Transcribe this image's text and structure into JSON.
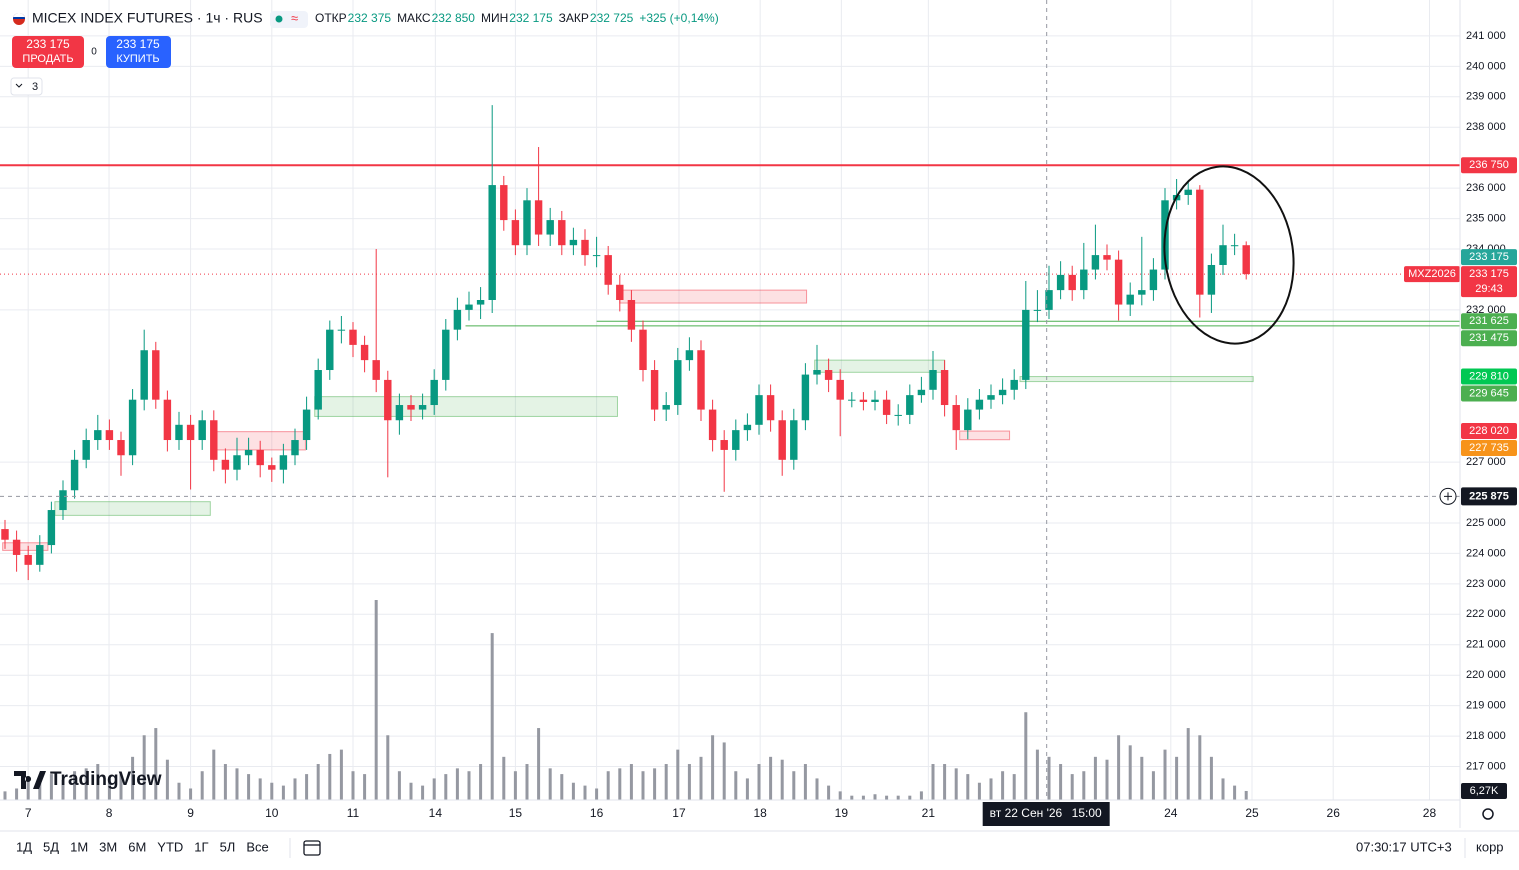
{
  "header": {
    "symbol": "MICEX INDEX FUTURES · 1ч · RUS",
    "ohlc": [
      {
        "label": "ОТКР",
        "value": "232 375"
      },
      {
        "label": "МАКС",
        "value": "232 850"
      },
      {
        "label": "МИН",
        "value": "232 175"
      },
      {
        "label": "ЗАКР",
        "value": "232 725"
      }
    ],
    "change": "+325 (+0,14%)"
  },
  "trade": {
    "sell_price": "233 175",
    "sell_label": "ПРОДАТЬ",
    "spread": "0",
    "buy_price": "233 175",
    "buy_label": "КУПИТЬ",
    "indicators": "3"
  },
  "logo": "TradingView",
  "chart_data": {
    "type": "candlestick",
    "up_color": "#089981",
    "down_color": "#f23645",
    "volume_color": "#9598a1",
    "open": [
      224800,
      224450,
      223950,
      223625,
      224275,
      225425,
      226075,
      227075,
      227725,
      228050,
      227725,
      227225,
      229050,
      230675,
      229050,
      227725,
      228225,
      227725,
      228375,
      227075,
      226750,
      227225,
      227400,
      226900,
      226750,
      227225,
      227725,
      228725,
      230025,
      231350,
      231350,
      230850,
      230350,
      229700,
      228375,
      228875,
      228725,
      228875,
      229700,
      231350,
      232000,
      232175,
      232325,
      236100,
      234950,
      234125,
      235600,
      234475,
      234950,
      234125,
      234300,
      233800,
      233800,
      232825,
      232325,
      231350,
      230025,
      228725,
      228875,
      230350,
      230675,
      228725,
      227725,
      227400,
      228050,
      228225,
      229200,
      228375,
      227075,
      228375,
      229875,
      230025,
      229700,
      229050,
      229050,
      228975,
      229050,
      228550,
      228550,
      229200,
      229375,
      230025,
      228875,
      228050,
      228725,
      229050,
      229200,
      229375,
      229700,
      232000,
      232000,
      232650,
      233150,
      232650,
      233325,
      233800,
      233650,
      232175,
      232500,
      232650,
      233325,
      235600,
      235775,
      235950,
      232500,
      233475,
      234125,
      234125
    ],
    "high": [
      225100,
      224750,
      224250,
      224600,
      225700,
      226400,
      227400,
      228100,
      228550,
      228400,
      228000,
      229400,
      231350,
      230950,
      229350,
      228650,
      228550,
      228700,
      228700,
      227450,
      227800,
      227800,
      227700,
      227150,
      227600,
      228100,
      229150,
      230400,
      231650,
      231800,
      231600,
      231150,
      234000,
      230000,
      229250,
      229200,
      229250,
      230050,
      231700,
      232400,
      232600,
      232750,
      238725,
      236400,
      235300,
      236000,
      237350,
      235350,
      235250,
      234700,
      234650,
      234400,
      234100,
      233150,
      232650,
      231650,
      230350,
      229300,
      230750,
      231100,
      231000,
      229050,
      228050,
      228400,
      228600,
      229550,
      229550,
      228700,
      228750,
      230250,
      230850,
      230400,
      230050,
      229300,
      229300,
      229350,
      229350,
      228900,
      229550,
      229800,
      230650,
      230350,
      229200,
      229100,
      229400,
      229550,
      229750,
      230050,
      232950,
      232650,
      233450,
      233600,
      233450,
      234200,
      234800,
      234150,
      233950,
      232900,
      234400,
      233700,
      236000,
      236300,
      236250,
      236100,
      233850,
      234800,
      234500,
      234250
    ],
    "low": [
      224150,
      223400,
      223125,
      223400,
      224000,
      225100,
      225800,
      226800,
      227400,
      227400,
      226550,
      226900,
      228700,
      228750,
      227350,
      227400,
      226100,
      227400,
      226700,
      226300,
      226400,
      226900,
      226500,
      226350,
      226300,
      226900,
      227400,
      228400,
      229700,
      230900,
      230450,
      229950,
      229300,
      226500,
      227900,
      228350,
      228400,
      228550,
      229350,
      231000,
      231650,
      231700,
      231900,
      234600,
      233800,
      233800,
      234100,
      234100,
      233800,
      233800,
      233450,
      233400,
      232500,
      231950,
      230950,
      229650,
      228350,
      228350,
      228550,
      230000,
      228350,
      227350,
      226025,
      227050,
      227700,
      227900,
      228000,
      226550,
      226750,
      228050,
      229550,
      229300,
      227850,
      228800,
      228700,
      228700,
      228250,
      228200,
      228250,
      228950,
      229050,
      228500,
      227400,
      227750,
      228400,
      228750,
      228900,
      229050,
      229400,
      231600,
      231700,
      232350,
      232300,
      232350,
      233000,
      233300,
      231650,
      231800,
      232150,
      232300,
      233000,
      235300,
      235450,
      231750,
      231900,
      233150,
      233800,
      233000
    ],
    "close": [
      224450,
      223950,
      223625,
      224275,
      225425,
      226075,
      227075,
      227725,
      228050,
      227725,
      227225,
      229050,
      230675,
      229050,
      227725,
      228225,
      227725,
      228375,
      227075,
      226750,
      227225,
      227400,
      226900,
      226750,
      227225,
      227725,
      228725,
      230025,
      231350,
      231350,
      230850,
      230350,
      229700,
      228375,
      228875,
      228725,
      228875,
      229700,
      231350,
      232000,
      232175,
      232325,
      236100,
      234950,
      234125,
      235600,
      234475,
      234950,
      234125,
      234300,
      233800,
      233800,
      232825,
      232325,
      231350,
      230025,
      228725,
      228875,
      230350,
      230675,
      228725,
      227725,
      227400,
      228050,
      228225,
      229200,
      228375,
      227075,
      228375,
      229875,
      230025,
      229700,
      229050,
      229050,
      228975,
      229050,
      228550,
      228550,
      229200,
      229375,
      230025,
      228875,
      228050,
      228725,
      229050,
      229200,
      229375,
      229700,
      232000,
      232000,
      232650,
      233150,
      232650,
      233325,
      233800,
      233650,
      232175,
      232500,
      232650,
      233325,
      235600,
      235775,
      235950,
      232500,
      233475,
      234125,
      234125,
      233175
    ],
    "volume": [
      6000,
      8000,
      15000,
      12000,
      18000,
      14000,
      20000,
      22000,
      25000,
      15000,
      18000,
      30000,
      45000,
      50000,
      28000,
      12000,
      8000,
      20000,
      35000,
      25000,
      22000,
      18000,
      15000,
      12000,
      10000,
      15000,
      18000,
      25000,
      32000,
      35000,
      20000,
      18000,
      139000,
      45000,
      20000,
      12000,
      10000,
      15000,
      18000,
      22000,
      20000,
      25000,
      116000,
      30000,
      20000,
      25000,
      50000,
      22000,
      18000,
      12000,
      10000,
      8000,
      20000,
      22000,
      25000,
      20000,
      22000,
      25000,
      35000,
      25000,
      30000,
      45000,
      40000,
      20000,
      15000,
      25000,
      30000,
      28000,
      20000,
      25000,
      15000,
      10000,
      6000,
      3000,
      3000,
      4000,
      3000,
      3000,
      3000,
      6000,
      25000,
      25000,
      22000,
      18000,
      12000,
      15000,
      20000,
      18000,
      61000,
      35000,
      30000,
      25000,
      18000,
      20000,
      30000,
      28000,
      45000,
      38000,
      30000,
      20000,
      35000,
      30000,
      50000,
      45000,
      30000,
      15000,
      10000,
      6270
    ],
    "volume_label": {
      "value": 6270,
      "label": "6,27K"
    },
    "xlim": [
      -0.43,
      125.43
    ],
    "ylim": [
      215900,
      242180
    ],
    "vlim": [
      0,
      556000
    ],
    "grid": true,
    "yticks": [
      {
        "value": 217000,
        "label": "217 000"
      },
      {
        "value": 218000,
        "label": "218 000"
      },
      {
        "value": 219000,
        "label": "219 000"
      },
      {
        "value": 220000,
        "label": "220 000"
      },
      {
        "value": 221000,
        "label": "221 000"
      },
      {
        "value": 222000,
        "label": "222 000"
      },
      {
        "value": 223000,
        "label": "223 000"
      },
      {
        "value": 224000,
        "label": "224 000"
      },
      {
        "value": 225000,
        "label": "225 000"
      },
      {
        "value": 227000,
        "label": "227 000"
      },
      {
        "value": 232000,
        "label": "232 000"
      },
      {
        "value": 234000,
        "label": "234 000"
      },
      {
        "value": 235000,
        "label": "235 000"
      },
      {
        "value": 236000,
        "label": "236 000"
      },
      {
        "value": 238000,
        "label": "238 000"
      },
      {
        "value": 239000,
        "label": "239 000"
      },
      {
        "value": 240000,
        "label": "240 000"
      },
      {
        "value": 241000,
        "label": "241 000"
      }
    ],
    "xticks": [
      {
        "value": 2,
        "label": "7"
      },
      {
        "value": 8.97,
        "label": "8"
      },
      {
        "value": 16,
        "label": "9"
      },
      {
        "value": 23,
        "label": "10"
      },
      {
        "value": 30,
        "label": "11"
      },
      {
        "value": 37.1,
        "label": "14"
      },
      {
        "value": 44,
        "label": "15"
      },
      {
        "value": 51,
        "label": "16"
      },
      {
        "value": 58.1,
        "label": "17"
      },
      {
        "value": 65.1,
        "label": "18"
      },
      {
        "value": 72.1,
        "label": "19"
      },
      {
        "value": 79.6,
        "label": "21"
      },
      {
        "value": 100.5,
        "label": "24"
      },
      {
        "value": 107.5,
        "label": "25"
      },
      {
        "value": 114.5,
        "label": "26"
      },
      {
        "value": 122.8,
        "label": "28"
      }
    ],
    "levels": [
      {
        "value": 236750,
        "start": -0.43,
        "color": "#f23645"
      },
      {
        "value": 231625,
        "start": 51,
        "color": "#4caf50"
      },
      {
        "value": 231475,
        "start": 39.7,
        "color": "#4caf50"
      }
    ],
    "zones": [
      {
        "start": -0.2,
        "end": 3.7,
        "top": 224350,
        "bottom": 224100,
        "color": "#f23645"
      },
      {
        "start": 4.3,
        "end": 17.7,
        "top": 225700,
        "bottom": 225250,
        "color": "#4caf50"
      },
      {
        "start": 18.1,
        "end": 25.9,
        "top": 228000,
        "bottom": 227400,
        "color": "#f23645"
      },
      {
        "start": 26.7,
        "end": 52.8,
        "top": 229150,
        "bottom": 228500,
        "color": "#4caf50"
      },
      {
        "start": 53,
        "end": 69.1,
        "top": 232650,
        "bottom": 232225,
        "color": "#f23645"
      },
      {
        "start": 69.8,
        "end": 81,
        "top": 230350,
        "bottom": 229950,
        "color": "#4caf50"
      },
      {
        "start": 82.3,
        "end": 86.6,
        "top": 228020,
        "bottom": 227735,
        "color": "#f23645"
      },
      {
        "start": 87.5,
        "end": 107.6,
        "top": 229810,
        "bottom": 229645,
        "color": "#4caf50"
      }
    ],
    "price_labels": [
      {
        "value": 236750,
        "label": "236 750",
        "color": "#f23645"
      },
      {
        "value": 231625,
        "label": "231 625",
        "color": "#4caf50"
      },
      {
        "value": 231475,
        "label": "231 475",
        "color": "#4caf50"
      },
      {
        "value": 229810,
        "label": "229 810",
        "color": "#00c853"
      },
      {
        "value": 229645,
        "label": "229 645",
        "color": "#4caf50"
      },
      {
        "value": 228020,
        "label": "228 020",
        "color": "#f23645"
      },
      {
        "value": 227735,
        "label": "227 735",
        "color": "#f7931a"
      }
    ],
    "last_price": {
      "name": "MXZ2026",
      "value": 233175,
      "label": "233 175",
      "countdown": "29:43",
      "ask_label": "233 175",
      "ask_color": "#26a69a",
      "color": "#f23645"
    },
    "crosshair": {
      "x": 89.8,
      "y": 225875,
      "y_label": "225 875",
      "x_label": "вт 22 Сен '26",
      "time_label": "15:00"
    }
  },
  "toolbar": {
    "ranges": [
      "1Д",
      "5Д",
      "1М",
      "3М",
      "6М",
      "YTD",
      "1Г",
      "5Л",
      "Все"
    ],
    "clock": "07:30:17 UTC+3",
    "adjust": "корр"
  }
}
